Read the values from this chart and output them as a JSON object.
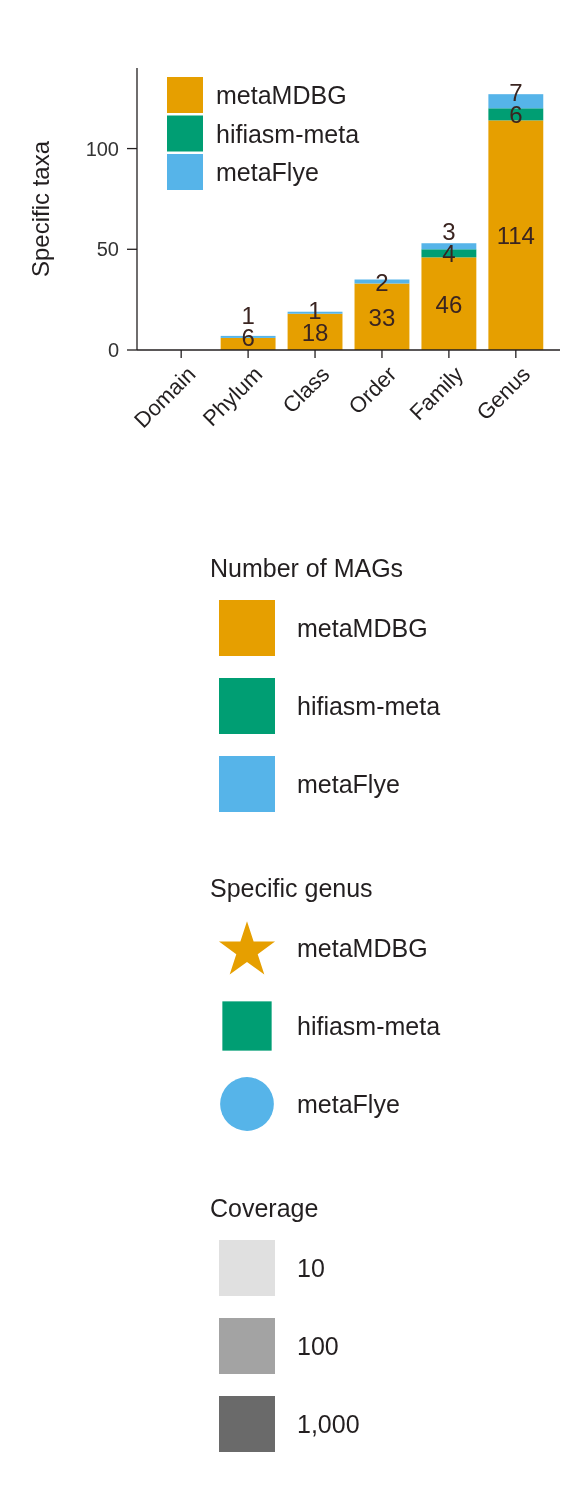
{
  "chart_data": [
    {
      "type": "bar",
      "ylabel": "Specific taxa",
      "categories": [
        "Domain",
        "Phylum",
        "Class",
        "Order",
        "Family",
        "Genus"
      ],
      "series": [
        {
          "name": "metaMDBG",
          "color": "#e69f00",
          "values": [
            0,
            6,
            18,
            33,
            46,
            114
          ],
          "value_labels": [
            null,
            "6",
            "18",
            "33",
            "46",
            "114"
          ]
        },
        {
          "name": "hifiasm-meta",
          "color": "#009e73",
          "values": [
            0,
            0,
            0,
            0,
            4,
            6
          ],
          "value_labels": [
            null,
            null,
            null,
            null,
            "4",
            "6"
          ]
        },
        {
          "name": "metaFlye",
          "color": "#56b4e9",
          "values": [
            0,
            1,
            1,
            2,
            3,
            7
          ],
          "value_labels": [
            null,
            "1",
            "1",
            "2",
            "3",
            "7"
          ]
        }
      ],
      "stacked": true,
      "ylim": [
        0,
        140
      ],
      "yticks": [
        0,
        50,
        100
      ],
      "legend": "top left"
    },
    {
      "type": "other",
      "legend_title": "Number of MAGs",
      "legend": "left",
      "series": [
        {
          "name": "metaMDBG",
          "color": "#e69f00"
        },
        {
          "name": "hifiasm-meta",
          "color": "#009e73"
        },
        {
          "name": "metaFlye",
          "color": "#56b4e9"
        }
      ]
    },
    {
      "type": "other",
      "legend_title": "Specific genus",
      "legend": "left",
      "series": [
        {
          "name": "metaMDBG",
          "color": "#e69f00",
          "marker": "star"
        },
        {
          "name": "hifiasm-meta",
          "color": "#009e73",
          "marker": "square"
        },
        {
          "name": "metaFlye",
          "color": "#56b4e9",
          "marker": "circle"
        }
      ]
    },
    {
      "type": "other",
      "legend_title": "Coverage",
      "legend": "left",
      "series": [
        {
          "name": "10",
          "color": "#e0e0e0"
        },
        {
          "name": "100",
          "color": "#a3a3a3"
        },
        {
          "name": "1,000",
          "color": "#6a6a6a"
        }
      ]
    }
  ]
}
